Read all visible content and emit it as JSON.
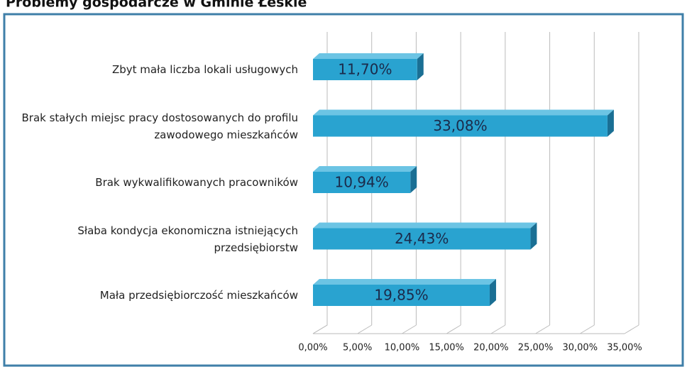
{
  "chart_data": {
    "type": "bar",
    "orientation": "horizontal",
    "title": "Problemy gospodarcze w Gminie Łeskie",
    "categories": [
      "Zbyt mała liczba lokali usługowych",
      "Brak stałych miejsc pracy dostosowanych do profilu zawodowego mieszkańców",
      "Brak wykwalifikowanych pracowników",
      "Słaba kondycja ekonomiczna istniejących przedsiębiorstw",
      "Mała przedsiębiorczość mieszkańców"
    ],
    "values": [
      11.7,
      33.08,
      10.94,
      24.43,
      19.85
    ],
    "value_labels": [
      "11,70%",
      "33,08%",
      "10,94%",
      "24,43%",
      "19,85%"
    ],
    "color": "#29a3d0",
    "xlim": [
      0,
      35
    ],
    "xticks": [
      {
        "value": 0,
        "label": "0,00%"
      },
      {
        "value": 5,
        "label": "5,00%"
      },
      {
        "value": 10,
        "label": "10,00%"
      },
      {
        "value": 15,
        "label": "15,00%"
      },
      {
        "value": 20,
        "label": "20,00%"
      },
      {
        "value": 25,
        "label": "25,00%"
      },
      {
        "value": 30,
        "label": "30,00%"
      },
      {
        "value": 35,
        "label": "35,00%"
      }
    ],
    "grid": true
  }
}
